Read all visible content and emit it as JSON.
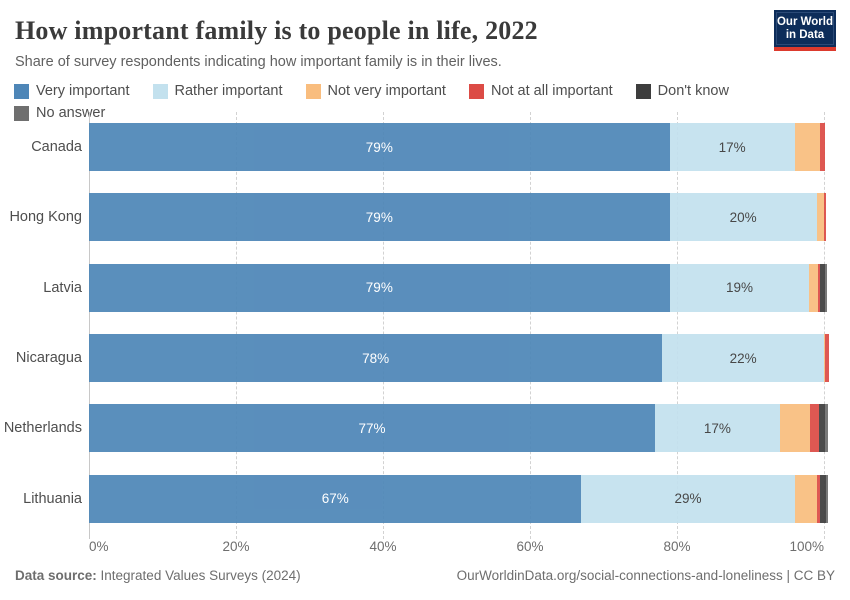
{
  "header": {
    "title": "How important family is to people in life, 2022",
    "subtitle": "Share of survey respondents indicating how important family is in their lives.",
    "logo_line1": "Our World",
    "logo_line2": "in Data"
  },
  "legend": {
    "items": [
      {
        "key": "very",
        "label": "Very important"
      },
      {
        "key": "rather",
        "label": "Rather important"
      },
      {
        "key": "not_very",
        "label": "Not very important"
      },
      {
        "key": "not_at_all",
        "label": "Not at all important"
      },
      {
        "key": "dont_know",
        "label": "Don't know"
      },
      {
        "key": "no_answer",
        "label": "No answer"
      }
    ]
  },
  "chart_data": {
    "type": "bar",
    "orientation": "horizontal",
    "stacked": true,
    "unit": "%",
    "xlim": [
      0,
      100
    ],
    "x_ticks": [
      0,
      20,
      40,
      60,
      80,
      100
    ],
    "x_tick_labels": [
      "0%",
      "20%",
      "40%",
      "60%",
      "80%",
      "100%"
    ],
    "grid": "vertical-dashed",
    "legend_position": "top",
    "categories": [
      "Canada",
      "Hong Kong",
      "Latvia",
      "Nicaragua",
      "Netherlands",
      "Lithuania"
    ],
    "colors": {
      "very": "#4e86b7",
      "rather": "#c3e1ee",
      "not_very": "#f9bd7e",
      "not_at_all": "#dc4b45",
      "dont_know": "#3d3d3d",
      "no_answer": "#6f6f6f"
    },
    "rows": [
      {
        "country": "Canada",
        "segments": [
          {
            "key": "very",
            "value": 79,
            "label": "79%"
          },
          {
            "key": "rather",
            "value": 17,
            "label": "17%"
          },
          {
            "key": "not_very",
            "value": 3.4
          },
          {
            "key": "not_at_all",
            "value": 0.8
          }
        ]
      },
      {
        "country": "Hong Kong",
        "segments": [
          {
            "key": "very",
            "value": 79,
            "label": "79%"
          },
          {
            "key": "rather",
            "value": 20,
            "label": "20%"
          },
          {
            "key": "not_very",
            "value": 1.0
          },
          {
            "key": "not_at_all",
            "value": 0.25
          }
        ]
      },
      {
        "country": "Latvia",
        "segments": [
          {
            "key": "very",
            "value": 79,
            "label": "79%"
          },
          {
            "key": "rather",
            "value": 19,
            "label": "19%"
          },
          {
            "key": "not_very",
            "value": 1.2
          },
          {
            "key": "not_at_all",
            "value": 0.2
          },
          {
            "key": "dont_know",
            "value": 0.8
          },
          {
            "key": "no_answer",
            "value": 0.2
          }
        ]
      },
      {
        "country": "Nicaragua",
        "segments": [
          {
            "key": "very",
            "value": 78,
            "label": "78%"
          },
          {
            "key": "rather",
            "value": 22,
            "label": "22%"
          },
          {
            "key": "not_very",
            "value": 0.2
          },
          {
            "key": "not_at_all",
            "value": 0.5
          }
        ]
      },
      {
        "country": "Netherlands",
        "segments": [
          {
            "key": "very",
            "value": 77,
            "label": "77%"
          },
          {
            "key": "rather",
            "value": 17,
            "label": "17%"
          },
          {
            "key": "not_very",
            "value": 4.1
          },
          {
            "key": "not_at_all",
            "value": 1.2
          },
          {
            "key": "dont_know",
            "value": 0.8
          },
          {
            "key": "no_answer",
            "value": 0.4
          }
        ]
      },
      {
        "country": "Lithuania",
        "segments": [
          {
            "key": "very",
            "value": 67,
            "label": "67%"
          },
          {
            "key": "rather",
            "value": 29,
            "label": "29%"
          },
          {
            "key": "not_very",
            "value": 3.1
          },
          {
            "key": "not_at_all",
            "value": 0.3
          },
          {
            "key": "dont_know",
            "value": 0.9
          },
          {
            "key": "no_answer",
            "value": 0.2
          }
        ]
      }
    ]
  },
  "footer": {
    "source_label": "Data source:",
    "source_text": " Integrated Values Surveys (2024)",
    "credit": "OurWorldinData.org/social-connections-and-loneliness | CC BY"
  }
}
